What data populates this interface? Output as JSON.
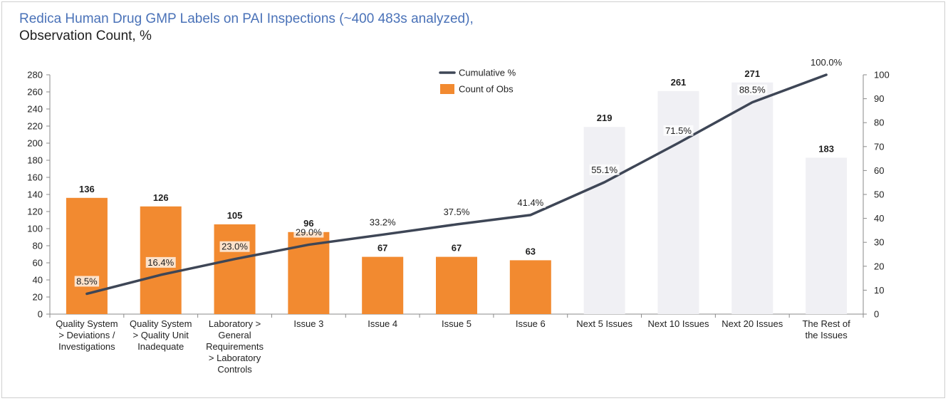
{
  "title_line1": "Redica Human Drug GMP Labels on PAI Inspections (~400 483s analyzed),",
  "title_line2": "Observation Count, %",
  "colors": {
    "bar": "#f28a30",
    "bar_faded": "#f0f0f4",
    "line": "#3e4656",
    "text": "#1f1f1f",
    "title": "#4a72b8"
  },
  "chart_data": {
    "type": "bar",
    "categories": [
      [
        "Quality System",
        "> Deviations /",
        "Investigations"
      ],
      [
        "Quality System",
        "> Quality Unit",
        "Inadequate"
      ],
      [
        "Laboratory >",
        "General",
        "Requirements",
        "> Laboratory",
        "Controls"
      ],
      [
        "Issue 3"
      ],
      [
        "Issue 4"
      ],
      [
        "Issue 5"
      ],
      [
        "Issue 6"
      ],
      [
        "Next 5 Issues"
      ],
      [
        "Next 10 Issues"
      ],
      [
        "Next 20 Issues"
      ],
      [
        "The Rest of",
        "the Issues"
      ]
    ],
    "faded_from_index": 7,
    "series": [
      {
        "name": "Count of Obs",
        "type": "bar",
        "axis": "left",
        "values": [
          136,
          126,
          105,
          96,
          67,
          67,
          63,
          219,
          261,
          271,
          183
        ],
        "labels": [
          "136",
          "126",
          "105",
          "96",
          "67",
          "67",
          "63",
          "219",
          "261",
          "271",
          "183"
        ]
      },
      {
        "name": "Cumulative %",
        "type": "line",
        "axis": "right",
        "values": [
          8.5,
          16.4,
          23.0,
          29.0,
          33.2,
          37.5,
          41.4,
          55.1,
          71.5,
          88.5,
          100.0
        ],
        "labels": [
          "8.5%",
          "16.4%",
          "23.0%",
          "29.0%",
          "33.2%",
          "37.5%",
          "41.4%",
          "55.1%",
          "71.5%",
          "88.5%",
          "100.0%"
        ]
      }
    ],
    "y_left": {
      "min": 0,
      "max": 280,
      "step": 20
    },
    "y_right": {
      "min": 0,
      "max": 100,
      "step": 10
    },
    "legend": {
      "position": "top-center",
      "items": [
        "Cumulative %",
        "Count of Obs"
      ]
    }
  }
}
